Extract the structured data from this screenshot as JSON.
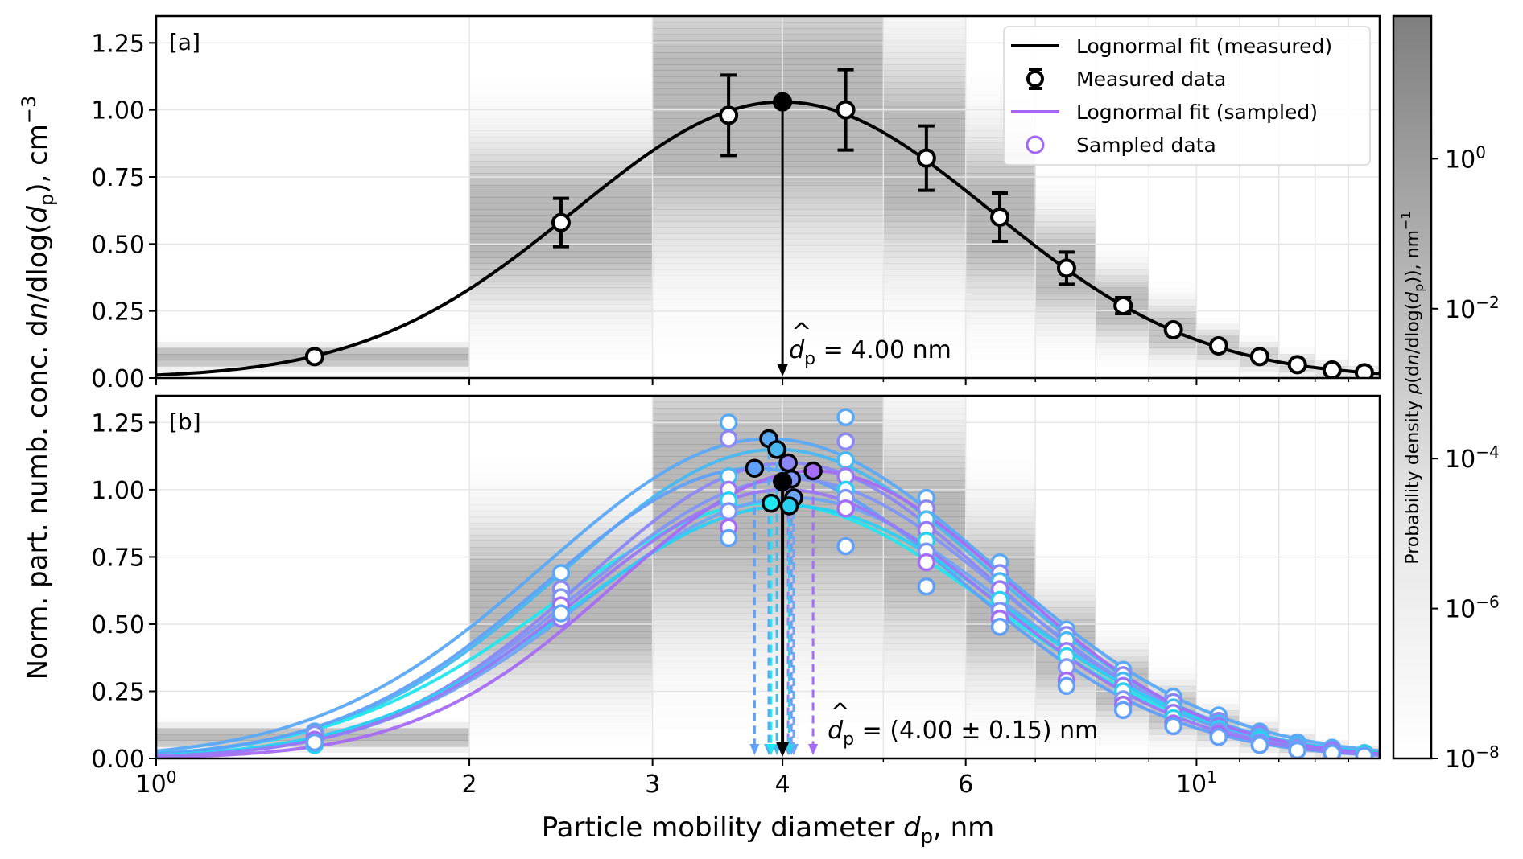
{
  "chart_data": [
    {
      "panel": "a",
      "type": "line",
      "tag": "[a]",
      "xscale": "log",
      "xlim": [
        1.0,
        15.0
      ],
      "ylim": [
        0.0,
        1.35
      ],
      "yticks": [
        "0.00",
        "0.25",
        "0.50",
        "0.75",
        "1.00",
        "1.25"
      ],
      "ytick_values": [
        0.0,
        0.25,
        0.5,
        0.75,
        1.0,
        1.25
      ],
      "grid": true,
      "fit": {
        "name": "Lognormal fit (measured)",
        "color": "#000000",
        "mode_nm": 4.0,
        "amplitude": 1.03,
        "log10_sigma": 0.2
      },
      "measured": {
        "name": "Measured data",
        "x": [
          1.42,
          2.45,
          3.55,
          4.6,
          5.5,
          6.47,
          7.5,
          8.5,
          9.5,
          10.5,
          11.5,
          12.5,
          13.5,
          14.5
        ],
        "y": [
          0.08,
          0.58,
          0.98,
          1.0,
          0.82,
          0.6,
          0.41,
          0.27,
          0.18,
          0.12,
          0.08,
          0.05,
          0.03,
          0.02
        ],
        "err": [
          0.0,
          0.09,
          0.15,
          0.15,
          0.12,
          0.09,
          0.06,
          0.03,
          0.0,
          0.0,
          0.0,
          0.0,
          0.0,
          0.0
        ]
      },
      "peak": {
        "x": 4.0,
        "y": 1.03
      },
      "annotation": {
        "prefix": "d",
        "sub": "p",
        "text": " = 4.00 nm"
      },
      "density_bins": [
        {
          "x0": 1.0,
          "x1": 2.0,
          "center": 0.08,
          "spread": 0.012,
          "strength": 0.55
        },
        {
          "x0": 2.0,
          "x1": 3.0,
          "center": 0.58,
          "spread": 0.09,
          "strength": 0.55
        },
        {
          "x0": 3.0,
          "x1": 4.0,
          "center": 0.98,
          "spread": 0.15,
          "strength": 0.55
        },
        {
          "x0": 4.0,
          "x1": 5.0,
          "center": 1.0,
          "spread": 0.15,
          "strength": 0.55
        },
        {
          "x0": 5.0,
          "x1": 6.0,
          "center": 0.82,
          "spread": 0.12,
          "strength": 0.55
        },
        {
          "x0": 6.0,
          "x1": 7.0,
          "center": 0.6,
          "spread": 0.09,
          "strength": 0.55
        },
        {
          "x0": 7.0,
          "x1": 8.0,
          "center": 0.41,
          "spread": 0.06,
          "strength": 0.5
        },
        {
          "x0": 8.0,
          "x1": 9.0,
          "center": 0.27,
          "spread": 0.04,
          "strength": 0.5
        },
        {
          "x0": 9.0,
          "x1": 10.0,
          "center": 0.18,
          "spread": 0.03,
          "strength": 0.45
        },
        {
          "x0": 10.0,
          "x1": 11.0,
          "center": 0.12,
          "spread": 0.02,
          "strength": 0.4
        },
        {
          "x0": 11.0,
          "x1": 12.0,
          "center": 0.08,
          "spread": 0.015,
          "strength": 0.35
        },
        {
          "x0": 12.0,
          "x1": 13.0,
          "center": 0.05,
          "spread": 0.012,
          "strength": 0.3
        },
        {
          "x0": 13.0,
          "x1": 14.0,
          "center": 0.03,
          "spread": 0.01,
          "strength": 0.25
        },
        {
          "x0": 14.0,
          "x1": 15.0,
          "center": 0.02,
          "spread": 0.008,
          "strength": 0.2
        }
      ]
    },
    {
      "panel": "b",
      "type": "line",
      "tag": "[b]",
      "xscale": "log",
      "xlim": [
        1.0,
        15.0
      ],
      "ylim": [
        0.0,
        1.35
      ],
      "yticks": [
        "0.00",
        "0.25",
        "0.50",
        "0.75",
        "1.00",
        "1.25"
      ],
      "ytick_values": [
        0.0,
        0.25,
        0.5,
        0.75,
        1.0,
        1.25
      ],
      "grid": true,
      "sampled_fits": [
        {
          "color": "#5aa9f5",
          "mode_nm": 3.88,
          "amplitude": 1.19,
          "log10_sigma": 0.215
        },
        {
          "color": "#48b8f0",
          "mode_nm": 3.95,
          "amplitude": 1.15,
          "log10_sigma": 0.205
        },
        {
          "color": "#22e6ee",
          "mode_nm": 3.9,
          "amplitude": 0.95,
          "log10_sigma": 0.21
        },
        {
          "color": "#60a0f8",
          "mode_nm": 3.76,
          "amplitude": 1.08,
          "log10_sigma": 0.2
        },
        {
          "color": "#8c87f5",
          "mode_nm": 4.05,
          "amplitude": 1.1,
          "log10_sigma": 0.195
        },
        {
          "color": "#7f95f6",
          "mode_nm": 4.08,
          "amplitude": 1.04,
          "log10_sigma": 0.2
        },
        {
          "color": "#6fa5f4",
          "mode_nm": 4.1,
          "amplitude": 0.97,
          "log10_sigma": 0.2
        },
        {
          "color": "#2ad0f0",
          "mode_nm": 4.06,
          "amplitude": 0.94,
          "log10_sigma": 0.205
        },
        {
          "color": "#a56cf5",
          "mode_nm": 4.28,
          "amplitude": 1.07,
          "log10_sigma": 0.19
        },
        {
          "color": "#9a78f5",
          "mode_nm": 4.02,
          "amplitude": 1.0,
          "log10_sigma": 0.195
        }
      ],
      "sampled_points": {
        "name": "Sampled data",
        "x": [
          1.42,
          2.45,
          3.55,
          4.6,
          5.5,
          6.47,
          7.5,
          8.5,
          9.5,
          10.5,
          11.5,
          12.5,
          13.5,
          14.5
        ],
        "y_sets": [
          [
            0.1,
            0.69,
            1.25,
            1.27,
            0.97,
            0.73,
            0.48,
            0.33,
            0.23,
            0.16,
            0.1,
            0.06,
            0.04,
            0.02
          ],
          [
            0.08,
            0.63,
            1.19,
            1.18,
            0.93,
            0.69,
            0.46,
            0.31,
            0.21,
            0.14,
            0.09,
            0.05,
            0.03,
            0.02
          ],
          [
            0.07,
            0.59,
            1.05,
            1.11,
            0.89,
            0.66,
            0.44,
            0.29,
            0.19,
            0.13,
            0.08,
            0.05,
            0.03,
            0.02
          ],
          [
            0.06,
            0.52,
            1.0,
            1.05,
            0.85,
            0.63,
            0.4,
            0.27,
            0.17,
            0.12,
            0.07,
            0.04,
            0.03,
            0.02
          ],
          [
            0.05,
            0.55,
            0.96,
            1.0,
            0.81,
            0.59,
            0.38,
            0.25,
            0.15,
            0.11,
            0.07,
            0.04,
            0.02,
            0.02
          ],
          [
            0.09,
            0.6,
            0.92,
            0.97,
            0.77,
            0.55,
            0.34,
            0.22,
            0.13,
            0.1,
            0.06,
            0.04,
            0.02,
            0.01
          ],
          [
            0.07,
            0.57,
            0.86,
            0.93,
            0.73,
            0.52,
            0.29,
            0.2,
            0.13,
            0.09,
            0.05,
            0.03,
            0.02,
            0.01
          ],
          [
            0.06,
            0.54,
            0.82,
            0.79,
            0.64,
            0.49,
            0.27,
            0.18,
            0.12,
            0.08,
            0.05,
            0.03,
            0.02,
            0.01
          ]
        ],
        "colors": [
          "#5aa9f5",
          "#8c87f5",
          "#48b8f0",
          "#9a78f5",
          "#2ad0f0",
          "#7f95f6",
          "#a56cf5",
          "#60a0f8"
        ]
      },
      "sampled_peaks": [
        {
          "x": 3.76,
          "y": 1.08,
          "color": "#60a0f8"
        },
        {
          "x": 3.88,
          "y": 1.19,
          "color": "#5aa9f5"
        },
        {
          "x": 3.95,
          "y": 1.15,
          "color": "#48b8f0"
        },
        {
          "x": 3.9,
          "y": 0.95,
          "color": "#22e6ee"
        },
        {
          "x": 4.05,
          "y": 1.1,
          "color": "#8c87f5"
        },
        {
          "x": 4.08,
          "y": 1.04,
          "color": "#7f95f6"
        },
        {
          "x": 4.1,
          "y": 0.97,
          "color": "#6fa5f4"
        },
        {
          "x": 4.06,
          "y": 0.94,
          "color": "#2ad0f0"
        },
        {
          "x": 4.28,
          "y": 1.07,
          "color": "#a56cf5"
        }
      ],
      "peak": {
        "x": 4.0,
        "y": 1.03
      },
      "annotation": {
        "prefix": "d",
        "sub": "p",
        "text": " = (4.00 ± 0.15) nm"
      }
    }
  ],
  "legend": {
    "items": [
      {
        "label": "Lognormal fit (measured)",
        "kind": "line",
        "color": "#000000"
      },
      {
        "label": "Measured data",
        "kind": "errmarker",
        "color": "#000000"
      },
      {
        "label": "Lognormal fit (sampled)",
        "kind": "line",
        "color": "#a366f5"
      },
      {
        "label": "Sampled data",
        "kind": "circle",
        "color": "#a366f5"
      }
    ],
    "placement": "top-right (panel a)"
  },
  "xaxis": {
    "label_prefix": "Particle mobility diameter ",
    "label_var": "d",
    "label_sub": "p",
    "label_suffix": ", nm",
    "ticks": [
      {
        "value": 1,
        "label": "10",
        "sup": "0"
      },
      {
        "value": 2,
        "label": "2",
        "sup": ""
      },
      {
        "value": 3,
        "label": "3",
        "sup": ""
      },
      {
        "value": 4,
        "label": "4",
        "sup": ""
      },
      {
        "value": 6,
        "label": "6",
        "sup": ""
      },
      {
        "value": 10,
        "label": "10",
        "sup": "1"
      }
    ],
    "minor_ticks": [
      5,
      7,
      8,
      9,
      11,
      12,
      13,
      14
    ]
  },
  "yaxis": {
    "label": "Norm. part. numb. conc. dn/dlog(dp), cm−3",
    "label_parts": [
      "Norm. part. numb. conc. d",
      "n",
      "/dlog(",
      "d",
      "p",
      "), cm",
      "−3"
    ]
  },
  "colorbar": {
    "label_parts": [
      "Probability density ",
      "ρ",
      "(d",
      "n",
      "/dlog(",
      "d",
      "p",
      ")), nm",
      "−1"
    ],
    "scale": "log",
    "range": [
      1e-08,
      80
    ],
    "ticks": [
      {
        "value": 1,
        "base": "10",
        "exp": "0"
      },
      {
        "value": 0.01,
        "base": "10",
        "exp": "−2"
      },
      {
        "value": 0.0001,
        "base": "10",
        "exp": "−4"
      },
      {
        "value": 1e-06,
        "base": "10",
        "exp": "−6"
      },
      {
        "value": 1e-08,
        "base": "10",
        "exp": "−8"
      }
    ],
    "color_low": "#ffffff",
    "color_high": "#7f7f7f"
  }
}
